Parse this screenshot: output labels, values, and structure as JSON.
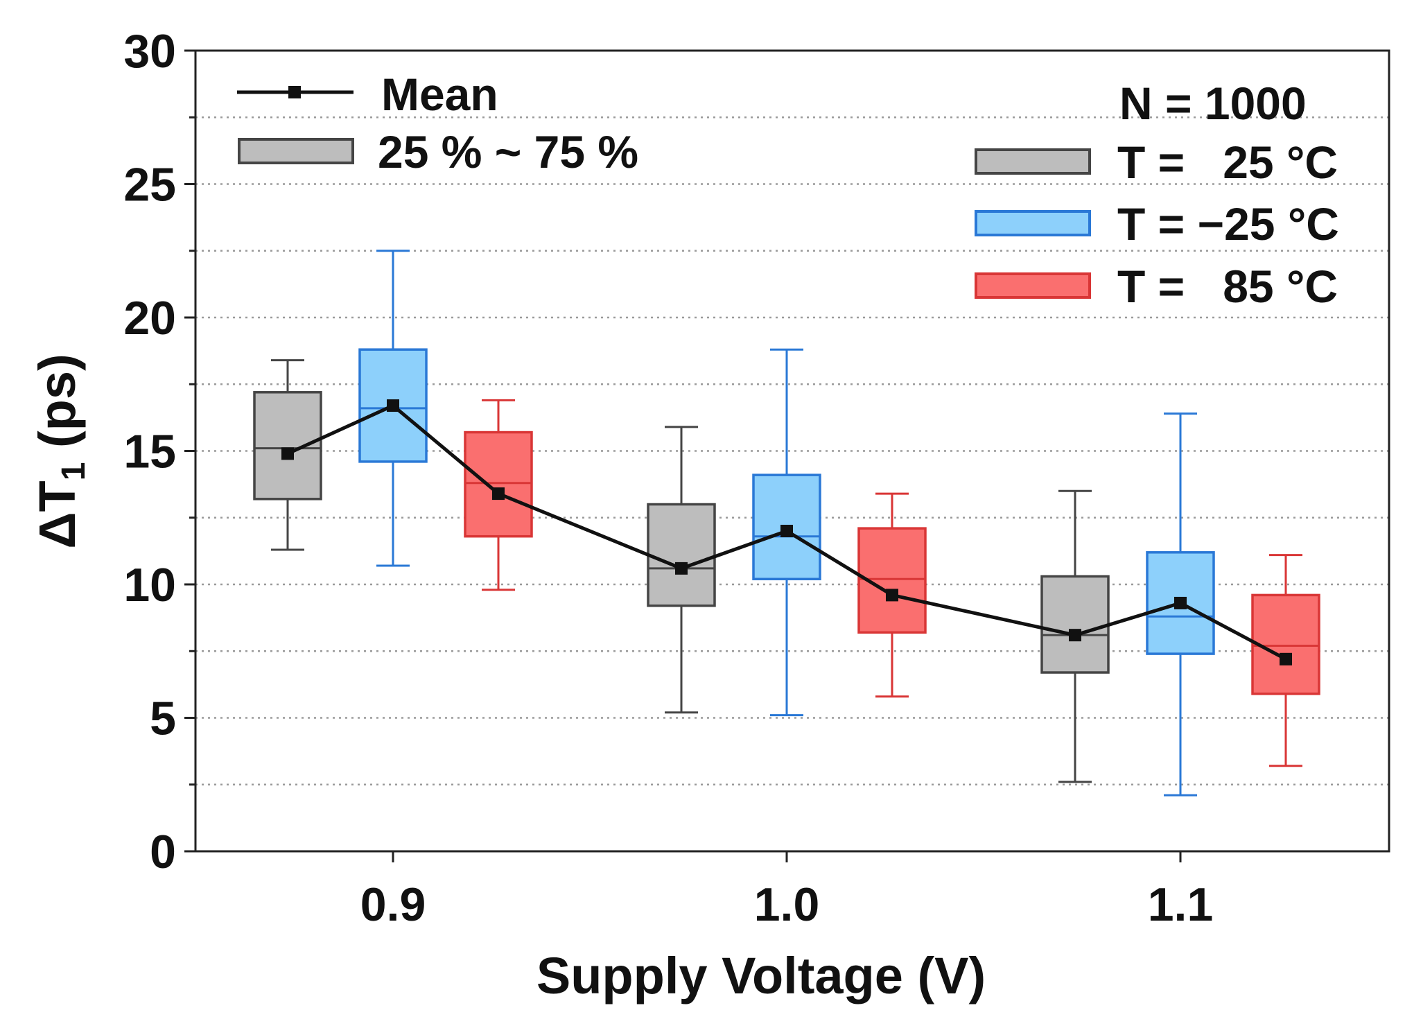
{
  "chart_data": {
    "type": "box",
    "xlabel": "Supply Voltage (V)",
    "ylabel_main": "ΔT",
    "ylabel_sub": "1",
    "ylabel_unit": " (ps)",
    "ylim": [
      0,
      30
    ],
    "yticks": [
      "0",
      "5",
      "10",
      "15",
      "20",
      "25",
      "30"
    ],
    "grid": "horizontal-dotted",
    "categories": [
      "0.9",
      "1.0",
      "1.1"
    ],
    "series": [
      {
        "name": "T =   25 °C",
        "fill": "#bdbdbd",
        "stroke": "#454545",
        "boxes": [
          {
            "min": 11.3,
            "q1": 13.2,
            "median": 15.1,
            "q3": 17.2,
            "max": 18.4,
            "mean": 14.9
          },
          {
            "min": 5.2,
            "q1": 9.2,
            "median": 10.6,
            "q3": 13.0,
            "max": 15.9,
            "mean": 10.6
          },
          {
            "min": 2.6,
            "q1": 6.7,
            "median": 8.1,
            "q3": 10.3,
            "max": 13.5,
            "mean": 8.1
          }
        ]
      },
      {
        "name": "T = −25 °C",
        "fill": "#8dd0fb",
        "stroke": "#2a78d6",
        "boxes": [
          {
            "min": 10.7,
            "q1": 14.6,
            "median": 16.6,
            "q3": 18.8,
            "max": 22.5,
            "mean": 16.7
          },
          {
            "min": 5.1,
            "q1": 10.2,
            "median": 11.8,
            "q3": 14.1,
            "max": 18.8,
            "mean": 12.0
          },
          {
            "min": 2.1,
            "q1": 7.4,
            "median": 8.8,
            "q3": 11.2,
            "max": 16.4,
            "mean": 9.3
          }
        ]
      },
      {
        "name": "T =   85 °C",
        "fill": "#fa6f6f",
        "stroke": "#d93636",
        "boxes": [
          {
            "min": 9.8,
            "q1": 11.8,
            "median": 13.8,
            "q3": 15.7,
            "max": 16.9,
            "mean": 13.4
          },
          {
            "min": 5.8,
            "q1": 8.2,
            "median": 10.2,
            "q3": 12.1,
            "max": 13.4,
            "mean": 9.6
          },
          {
            "min": 3.2,
            "q1": 5.9,
            "median": 7.7,
            "q3": 9.6,
            "max": 11.1,
            "mean": 7.2
          }
        ]
      }
    ],
    "legend": {
      "mean_label": "Mean",
      "box_label": "25 % ~ 75 %",
      "n_label": "N = 1000",
      "placement": "top"
    }
  }
}
